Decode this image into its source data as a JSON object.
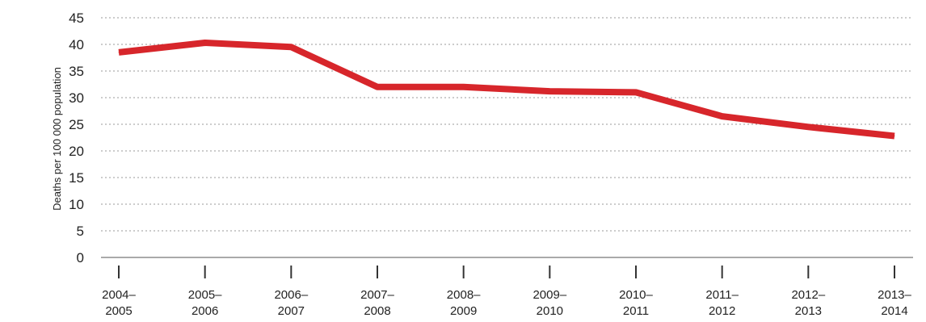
{
  "chart_data": {
    "type": "line",
    "title": "",
    "xlabel": "",
    "ylabel": "Deaths per 100 000 population",
    "ylim": [
      0,
      45
    ],
    "yticks": [
      "0",
      "5",
      "10",
      "15",
      "20",
      "25",
      "30",
      "35",
      "40",
      "45"
    ],
    "grid": "horizontal-dotted",
    "categories": [
      [
        "2004–",
        "2005"
      ],
      [
        "2005–",
        "2006"
      ],
      [
        "2006–",
        "2007"
      ],
      [
        "2007–",
        "2008"
      ],
      [
        "2008–",
        "2009"
      ],
      [
        "2009–",
        "2010"
      ],
      [
        "2010–",
        "2011"
      ],
      [
        "2011–",
        "2012"
      ],
      [
        "2012–",
        "2013"
      ],
      [
        "2013–",
        "2014"
      ]
    ],
    "series": [
      {
        "values": [
          38.5,
          40.3,
          39.5,
          32.0,
          32.0,
          31.2,
          31.0,
          26.5,
          24.5,
          22.8
        ],
        "color": "#d7262b"
      }
    ]
  }
}
